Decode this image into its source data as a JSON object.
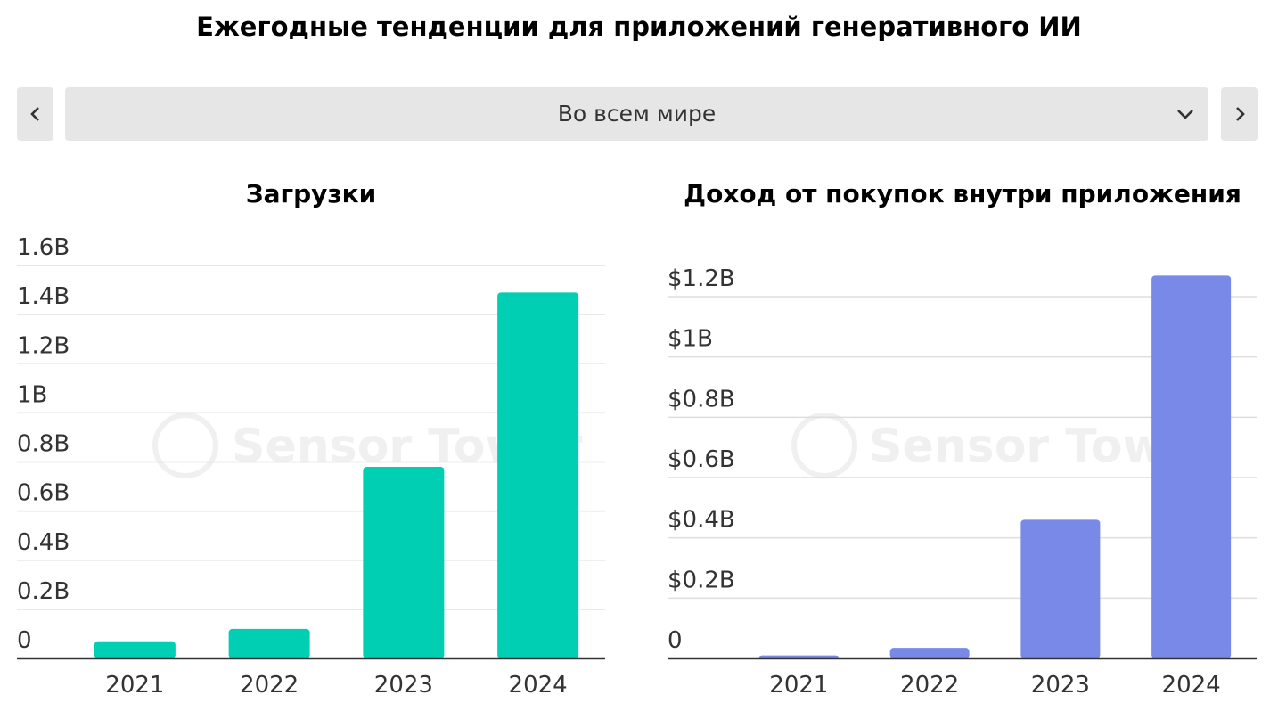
{
  "header": {
    "title": "Ежегодные тенденции для приложений генеративного ИИ"
  },
  "selector": {
    "value": "Во всем мире",
    "prev_icon": "chevron-left-icon",
    "next_icon": "chevron-right-icon",
    "dropdown_icon": "chevron-down-icon"
  },
  "watermark": "Sensor Tower",
  "chart_data": [
    {
      "type": "bar",
      "title": "Загрузки",
      "categories": [
        "2021",
        "2022",
        "2023",
        "2024"
      ],
      "values": [
        0.07,
        0.12,
        0.78,
        1.49
      ],
      "ylim": [
        0,
        1.6
      ],
      "yticks": [
        {
          "v": 1.6,
          "label": "1.6B"
        },
        {
          "v": 1.4,
          "label": "1.4B"
        },
        {
          "v": 1.2,
          "label": "1.2B"
        },
        {
          "v": 1.0,
          "label": "1B"
        },
        {
          "v": 0.8,
          "label": "0.8B"
        },
        {
          "v": 0.6,
          "label": "0.6B"
        },
        {
          "v": 0.4,
          "label": "0.4B"
        },
        {
          "v": 0.2,
          "label": "0.2B"
        },
        {
          "v": 0,
          "label": "0"
        }
      ],
      "unit": "B",
      "color": "#00cfb4",
      "grid": true
    },
    {
      "type": "bar",
      "title": "Доход от покупок внутри приложения",
      "categories": [
        "2021",
        "2022",
        "2023",
        "2024"
      ],
      "values": [
        0.01,
        0.035,
        0.46,
        1.27
      ],
      "ylim": [
        0,
        1.2
      ],
      "yticks": [
        {
          "v": 1.2,
          "label": "$1.2B"
        },
        {
          "v": 1.0,
          "label": "$1B"
        },
        {
          "v": 0.8,
          "label": "$0.8B"
        },
        {
          "v": 0.6,
          "label": "$0.6B"
        },
        {
          "v": 0.4,
          "label": "$0.4B"
        },
        {
          "v": 0.2,
          "label": "$0.2B"
        },
        {
          "v": 0,
          "label": "0"
        }
      ],
      "unit": "$B",
      "color": "#7889e8",
      "grid": true
    }
  ]
}
